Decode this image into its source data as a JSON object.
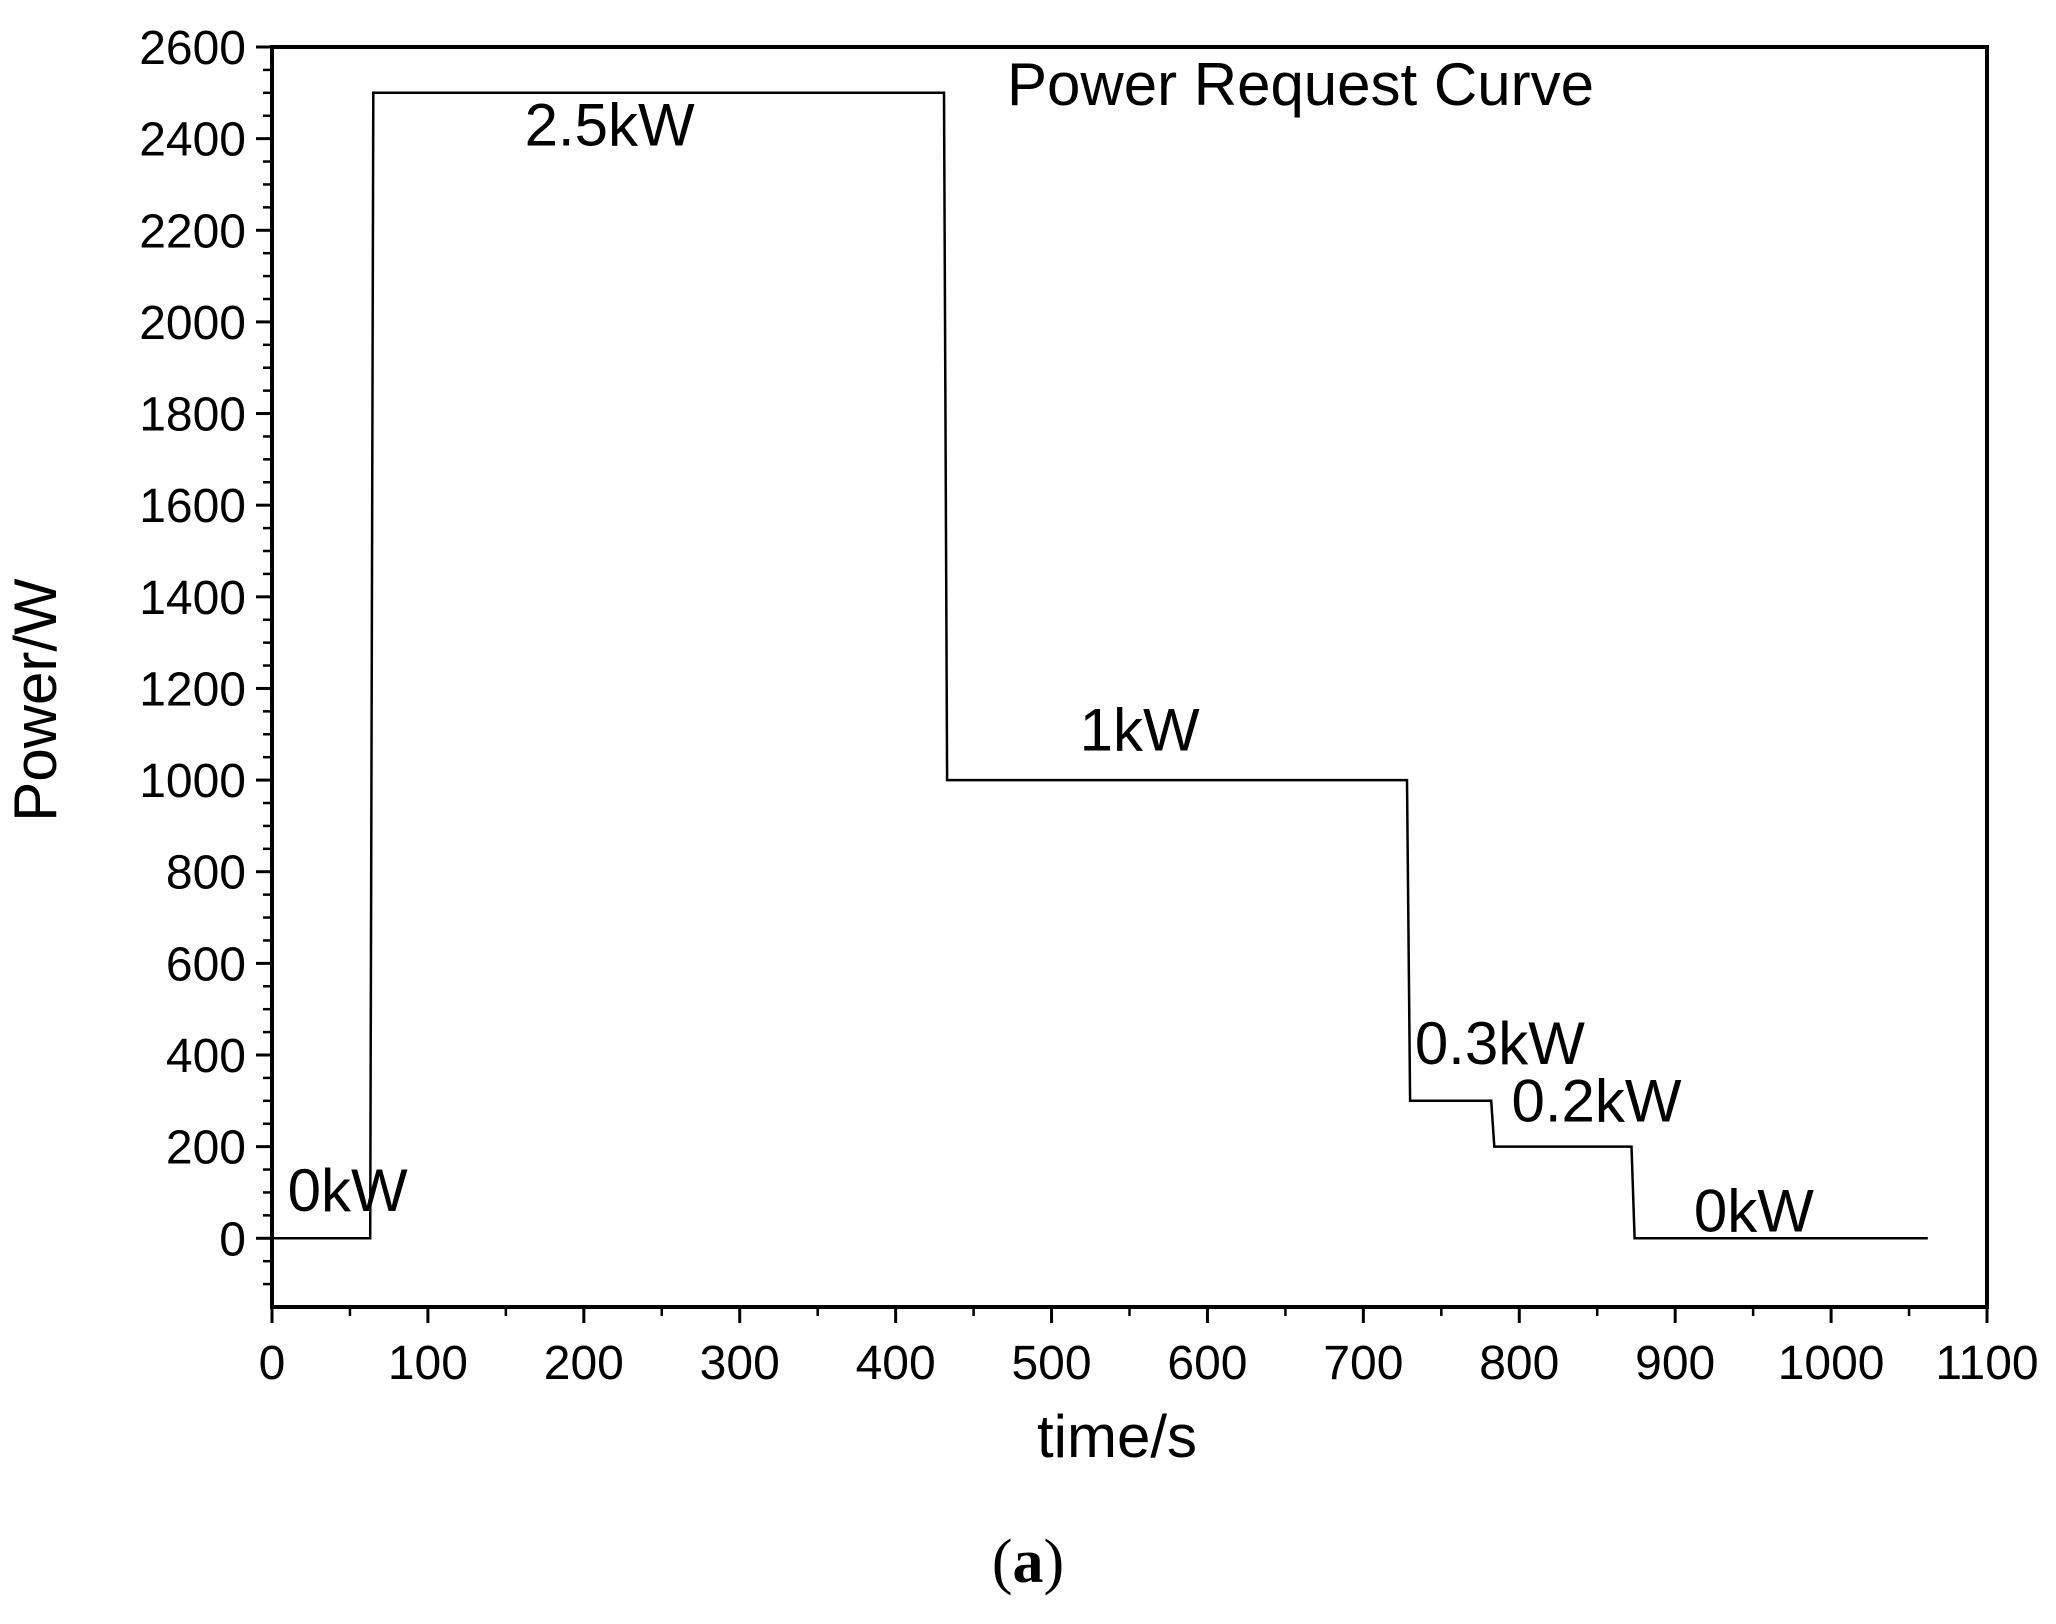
{
  "chart_data": {
    "type": "line",
    "line_style": "step",
    "title": "Power Request Curve",
    "xlabel": "time/s",
    "ylabel": "Power/W",
    "xlim": [
      0,
      1100
    ],
    "ylim": [
      -150,
      2600
    ],
    "x_ticks": [
      0,
      100,
      200,
      300,
      400,
      500,
      600,
      700,
      800,
      900,
      1000,
      1100
    ],
    "y_ticks": [
      0,
      200,
      400,
      600,
      800,
      1000,
      1200,
      1400,
      1600,
      1800,
      2000,
      2200,
      2400,
      2600
    ],
    "grid": false,
    "line_color": "#000000",
    "series": [
      {
        "x": [
          0,
          63,
          65,
          431,
          433,
          728,
          730,
          782,
          784,
          872,
          874,
          1062
        ],
        "y": [
          0,
          0,
          2500,
          2500,
          1000,
          1000,
          300,
          300,
          200,
          200,
          0,
          0
        ]
      }
    ],
    "annotations": [
      {
        "text": "0kW",
        "x": 10,
        "y": 60
      },
      {
        "text": "2.5kW",
        "x": 162,
        "y": 2385
      },
      {
        "text": "1kW",
        "x": 518,
        "y": 1065
      },
      {
        "text": "0.3kW",
        "x": 733,
        "y": 380
      },
      {
        "text": "0.2kW",
        "x": 795,
        "y": 255
      },
      {
        "text": "0kW",
        "x": 912,
        "y": 15
      }
    ]
  },
  "caption": {
    "open": "(",
    "letter": "a",
    "close": ")"
  }
}
